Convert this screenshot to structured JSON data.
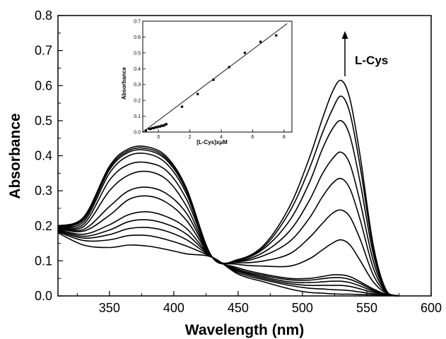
{
  "chart_data": [
    {
      "type": "line",
      "xlabel": "Wavelength (nm)",
      "ylabel": "Absorbance",
      "xlim": [
        310,
        600
      ],
      "ylim": [
        0.0,
        0.8
      ],
      "x_ticks": [
        "350",
        "400",
        "450",
        "500",
        "550",
        "600"
      ],
      "y_ticks": [
        "0.0",
        "0.1",
        "0.2",
        "0.3",
        "0.4",
        "0.5",
        "0.6",
        "0.7",
        "0.8"
      ],
      "annotation": "L-Cys",
      "grid": false,
      "series": [
        {
          "x": [
            310,
            330,
            350,
            365,
            380,
            395,
            410,
            430,
            450,
            470,
            490,
            505,
            515,
            523,
            530,
            537,
            545,
            555,
            565,
            575
          ],
          "y": [
            0.18,
            0.145,
            0.138,
            0.145,
            0.142,
            0.132,
            0.12,
            0.11,
            0.062,
            0.04,
            0.02,
            0.01,
            0.008,
            0.006,
            0.005,
            0.005,
            0.004,
            0.003,
            0.002,
            0.0
          ]
        },
        {
          "x": [
            310,
            330,
            350,
            365,
            380,
            395,
            410,
            430,
            450,
            470,
            490,
            505,
            515,
            523,
            530,
            537,
            545,
            555,
            565,
            575
          ],
          "y": [
            0.183,
            0.158,
            0.16,
            0.172,
            0.172,
            0.16,
            0.142,
            0.11,
            0.066,
            0.046,
            0.03,
            0.022,
            0.02,
            0.018,
            0.017,
            0.015,
            0.011,
            0.006,
            0.002,
            0.0
          ]
        },
        {
          "x": [
            310,
            330,
            350,
            365,
            380,
            395,
            410,
            430,
            450,
            470,
            490,
            505,
            515,
            523,
            530,
            537,
            545,
            555,
            565,
            575
          ],
          "y": [
            0.185,
            0.165,
            0.175,
            0.192,
            0.195,
            0.184,
            0.16,
            0.11,
            0.07,
            0.05,
            0.035,
            0.03,
            0.03,
            0.03,
            0.03,
            0.027,
            0.02,
            0.01,
            0.003,
            0.0
          ]
        },
        {
          "x": [
            310,
            330,
            350,
            365,
            380,
            395,
            410,
            430,
            450,
            470,
            490,
            505,
            515,
            523,
            530,
            537,
            545,
            555,
            565,
            575
          ],
          "y": [
            0.188,
            0.17,
            0.188,
            0.212,
            0.217,
            0.204,
            0.176,
            0.11,
            0.073,
            0.054,
            0.04,
            0.038,
            0.04,
            0.042,
            0.042,
            0.038,
            0.028,
            0.014,
            0.004,
            0.0
          ]
        },
        {
          "x": [
            310,
            330,
            350,
            365,
            380,
            395,
            410,
            430,
            450,
            470,
            490,
            505,
            515,
            523,
            530,
            537,
            545,
            555,
            565,
            575
          ],
          "y": [
            0.19,
            0.176,
            0.203,
            0.232,
            0.24,
            0.225,
            0.192,
            0.11,
            0.076,
            0.058,
            0.046,
            0.045,
            0.049,
            0.052,
            0.052,
            0.047,
            0.035,
            0.017,
            0.005,
            0.0
          ]
        },
        {
          "x": [
            310,
            330,
            350,
            365,
            380,
            395,
            410,
            430,
            450,
            470,
            490,
            505,
            515,
            523,
            530,
            537,
            545,
            555,
            565,
            575
          ],
          "y": [
            0.192,
            0.185,
            0.23,
            0.275,
            0.285,
            0.265,
            0.215,
            0.11,
            0.08,
            0.062,
            0.05,
            0.05,
            0.055,
            0.06,
            0.06,
            0.055,
            0.04,
            0.02,
            0.005,
            0.0
          ]
        },
        {
          "x": [
            310,
            330,
            350,
            365,
            380,
            395,
            410,
            430,
            450,
            470,
            490,
            505,
            515,
            523,
            530,
            537,
            545,
            555,
            565,
            575
          ],
          "y": [
            0.194,
            0.19,
            0.255,
            0.3,
            0.31,
            0.29,
            0.235,
            0.11,
            0.09,
            0.085,
            0.085,
            0.105,
            0.13,
            0.15,
            0.16,
            0.145,
            0.1,
            0.04,
            0.008,
            0.0
          ]
        },
        {
          "x": [
            310,
            330,
            350,
            365,
            380,
            395,
            410,
            430,
            450,
            470,
            490,
            505,
            515,
            523,
            530,
            537,
            545,
            555,
            565,
            575
          ],
          "y": [
            0.196,
            0.198,
            0.3,
            0.345,
            0.355,
            0.33,
            0.255,
            0.11,
            0.095,
            0.1,
            0.12,
            0.165,
            0.205,
            0.235,
            0.245,
            0.225,
            0.16,
            0.06,
            0.01,
            0.0
          ]
        },
        {
          "x": [
            310,
            330,
            350,
            365,
            380,
            395,
            410,
            430,
            450,
            470,
            490,
            505,
            515,
            523,
            530,
            537,
            545,
            555,
            565,
            575
          ],
          "y": [
            0.198,
            0.205,
            0.33,
            0.375,
            0.38,
            0.355,
            0.275,
            0.11,
            0.098,
            0.115,
            0.155,
            0.22,
            0.28,
            0.32,
            0.335,
            0.305,
            0.215,
            0.08,
            0.012,
            0.0
          ]
        },
        {
          "x": [
            310,
            330,
            350,
            365,
            380,
            395,
            410,
            430,
            450,
            470,
            490,
            505,
            515,
            523,
            530,
            537,
            545,
            555,
            565,
            575
          ],
          "y": [
            0.199,
            0.212,
            0.35,
            0.4,
            0.405,
            0.375,
            0.29,
            0.11,
            0.1,
            0.125,
            0.185,
            0.27,
            0.345,
            0.39,
            0.41,
            0.375,
            0.265,
            0.1,
            0.014,
            0.0
          ]
        },
        {
          "x": [
            310,
            330,
            350,
            365,
            380,
            395,
            410,
            430,
            450,
            470,
            490,
            505,
            515,
            523,
            530,
            537,
            545,
            555,
            565,
            575
          ],
          "y": [
            0.2,
            0.218,
            0.36,
            0.41,
            0.415,
            0.385,
            0.298,
            0.11,
            0.102,
            0.135,
            0.215,
            0.32,
            0.415,
            0.475,
            0.5,
            0.455,
            0.32,
            0.12,
            0.015,
            0.0
          ]
        },
        {
          "x": [
            310,
            330,
            350,
            365,
            380,
            395,
            410,
            430,
            450,
            470,
            490,
            505,
            515,
            523,
            530,
            537,
            545,
            555,
            565,
            575
          ],
          "y": [
            0.2,
            0.222,
            0.365,
            0.415,
            0.42,
            0.39,
            0.303,
            0.11,
            0.103,
            0.14,
            0.24,
            0.36,
            0.46,
            0.53,
            0.57,
            0.52,
            0.365,
            0.135,
            0.016,
            0.0
          ]
        },
        {
          "x": [
            310,
            330,
            350,
            365,
            380,
            395,
            410,
            430,
            450,
            470,
            490,
            505,
            515,
            523,
            530,
            537,
            545,
            555,
            565,
            575
          ],
          "y": [
            0.2,
            0.225,
            0.37,
            0.42,
            0.425,
            0.395,
            0.306,
            0.11,
            0.104,
            0.145,
            0.255,
            0.39,
            0.5,
            0.58,
            0.615,
            0.56,
            0.395,
            0.145,
            0.017,
            0.0
          ]
        }
      ]
    },
    {
      "type": "scatter",
      "xlabel": "[L-Cys]xμM",
      "ylabel": "Absorbance",
      "xlim": [
        -1,
        8.5
      ],
      "ylim": [
        0.0,
        0.7
      ],
      "x_ticks": [
        "0",
        "2",
        "4",
        "6",
        "8"
      ],
      "y_ticks": [
        "0.0",
        "0.1",
        "0.2",
        "0.3",
        "0.4",
        "0.5",
        "0.6",
        "0.7"
      ],
      "points": {
        "x": [
          -0.8,
          -0.6,
          -0.5,
          -0.4,
          -0.3,
          -0.2,
          -0.1,
          0.0,
          0.1,
          0.2,
          0.3,
          0.4,
          0.5,
          1.5,
          2.5,
          3.5,
          4.5,
          5.5,
          6.5,
          7.5
        ],
        "y": [
          0.01,
          0.02,
          0.02,
          0.025,
          0.025,
          0.03,
          0.03,
          0.035,
          0.035,
          0.04,
          0.04,
          0.045,
          0.05,
          0.16,
          0.24,
          0.33,
          0.41,
          0.5,
          0.57,
          0.61
        ]
      },
      "fit_line": {
        "x": [
          -1,
          8.2
        ],
        "y": [
          0.0,
          0.685
        ]
      }
    }
  ]
}
